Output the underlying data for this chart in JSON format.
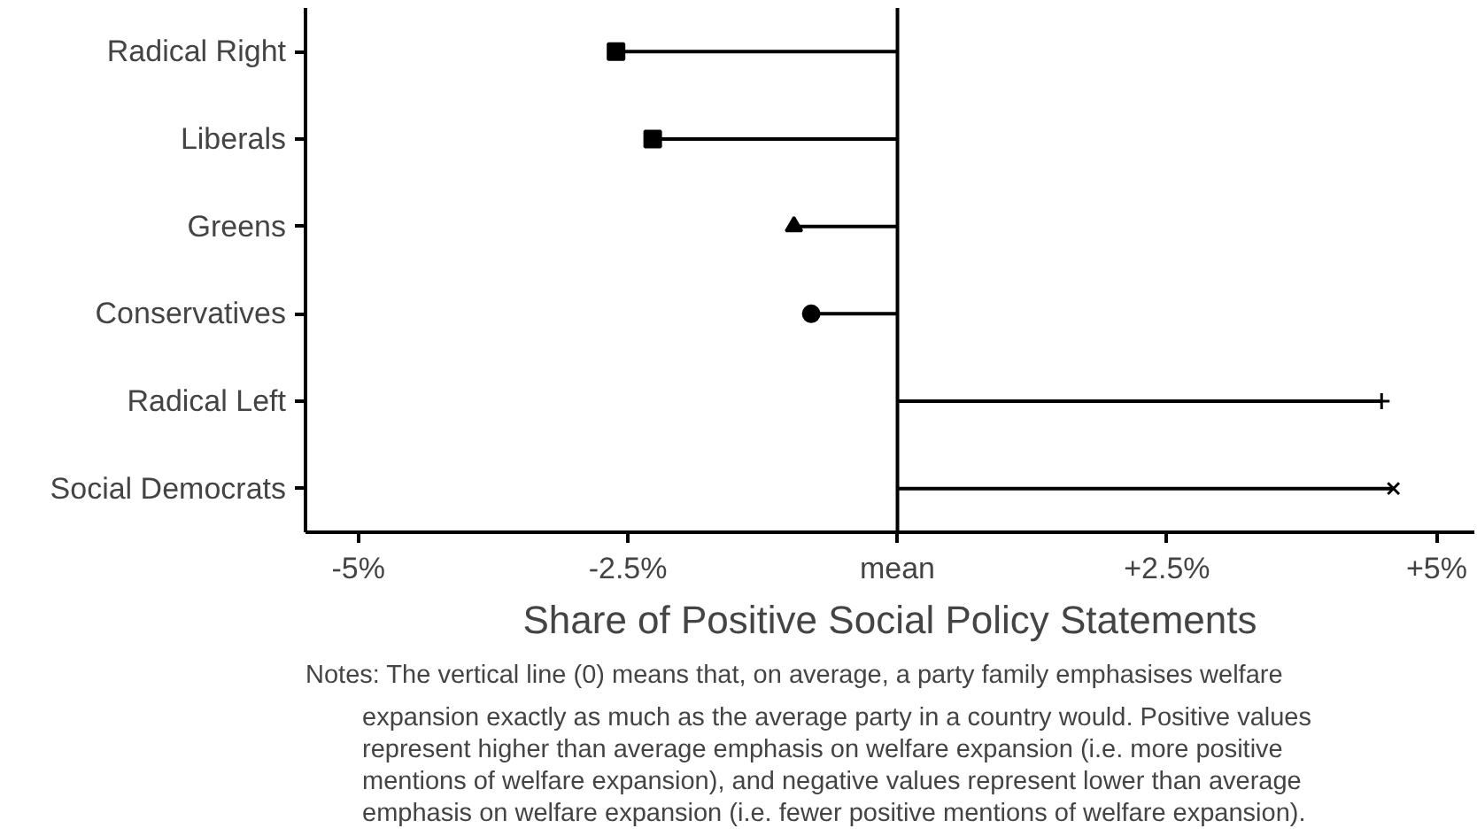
{
  "chart_data": {
    "type": "lollipop",
    "orientation": "horizontal",
    "categories": [
      "Radical Right",
      "Liberals",
      "Greens",
      "Conservatives",
      "Radical Left",
      "Social Democrats"
    ],
    "series": [
      {
        "color": "#000000",
        "marker": "square",
        "values": [
          -2.61,
          null,
          null,
          null,
          null,
          null
        ]
      },
      {
        "color": "#000000",
        "marker": "square",
        "values": [
          null,
          -2.27,
          null,
          null,
          null,
          null
        ]
      },
      {
        "color": "#000000",
        "marker": "triangle",
        "values": [
          null,
          null,
          -0.96,
          null,
          null,
          null
        ]
      },
      {
        "color": "#000000",
        "marker": "circle",
        "values": [
          null,
          null,
          null,
          -0.8,
          null,
          null
        ]
      },
      {
        "color": "#000000",
        "marker": "cross",
        "values": [
          null,
          null,
          null,
          null,
          4.49,
          null
        ]
      },
      {
        "color": "#000000",
        "marker": "x",
        "values": [
          null,
          null,
          null,
          null,
          null,
          4.6
        ]
      }
    ],
    "xlim": [
      -5.49,
      5.35
    ],
    "xticks": [
      {
        "value": -5,
        "label": "-5%"
      },
      {
        "value": -2.5,
        "label": "-2.5%"
      },
      {
        "value": 0,
        "label": "mean"
      },
      {
        "value": 2.5,
        "label": "+2.5%"
      },
      {
        "value": 5,
        "label": "+5%"
      }
    ],
    "xlabel": "Share of Positive Social Policy Statements",
    "ref_lines": [
      {
        "axis": "x",
        "value": 0,
        "color": "#000000"
      }
    ],
    "grid": false,
    "annotations": [
      "Notes: The vertical line (0) means that, on average, a party family emphasises welfare\nexpansion exactly as much as the average party in a country would. Positive values\nrepresent higher than average emphasis on welfare expansion (i.e. more positive\nmentions of welfare expansion), and negative values represent lower than average\nemphasis on welfare expansion (i.e. fewer positive mentions of welfare expansion)."
    ]
  }
}
